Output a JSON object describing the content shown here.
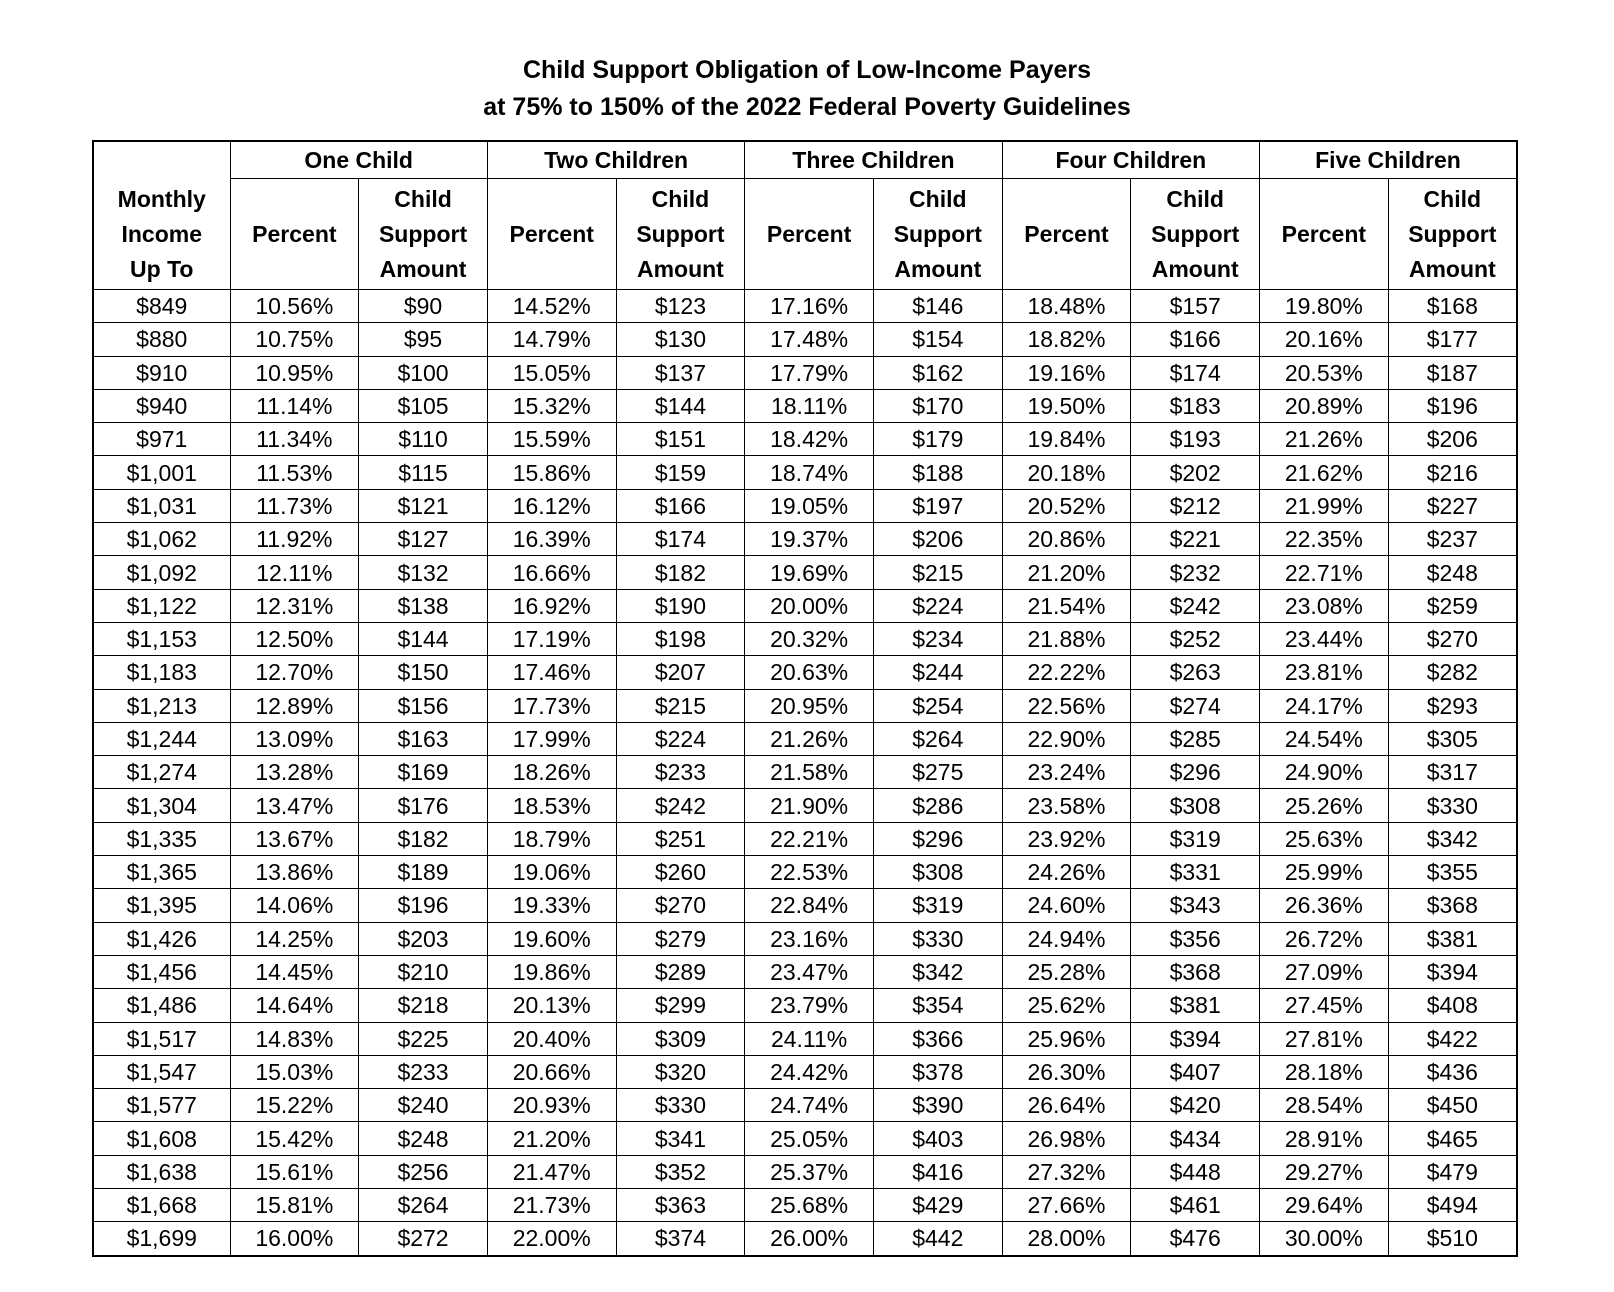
{
  "title": [
    "Child Support Obligation of Low-Income Payers",
    "at 75% to 150% of the 2022 Federal Poverty Guidelines"
  ],
  "table": {
    "income_header": [
      "Monthly",
      "Income",
      "Up To"
    ],
    "groups": [
      {
        "name": "One Child",
        "percent": "Percent",
        "amount": [
          "Child",
          "Support",
          "Amount"
        ]
      },
      {
        "name": "Two Children",
        "percent": "Percent",
        "amount": [
          "Child",
          "Support",
          "Amount"
        ]
      },
      {
        "name": "Three Children",
        "percent": "Percent",
        "amount": [
          "Child",
          "Support",
          "Amount"
        ]
      },
      {
        "name": "Four Children",
        "percent": "Percent",
        "amount": [
          "Child",
          "Support",
          "Amount"
        ]
      },
      {
        "name": "Five Children",
        "percent": "Percent",
        "amount": [
          "Child",
          "Support",
          "Amount"
        ]
      }
    ],
    "rows": [
      [
        "$849",
        "10.56%",
        "$90",
        "14.52%",
        "$123",
        "17.16%",
        "$146",
        "18.48%",
        "$157",
        "19.80%",
        "$168"
      ],
      [
        "$880",
        "10.75%",
        "$95",
        "14.79%",
        "$130",
        "17.48%",
        "$154",
        "18.82%",
        "$166",
        "20.16%",
        "$177"
      ],
      [
        "$910",
        "10.95%",
        "$100",
        "15.05%",
        "$137",
        "17.79%",
        "$162",
        "19.16%",
        "$174",
        "20.53%",
        "$187"
      ],
      [
        "$940",
        "11.14%",
        "$105",
        "15.32%",
        "$144",
        "18.11%",
        "$170",
        "19.50%",
        "$183",
        "20.89%",
        "$196"
      ],
      [
        "$971",
        "11.34%",
        "$110",
        "15.59%",
        "$151",
        "18.42%",
        "$179",
        "19.84%",
        "$193",
        "21.26%",
        "$206"
      ],
      [
        "$1,001",
        "11.53%",
        "$115",
        "15.86%",
        "$159",
        "18.74%",
        "$188",
        "20.18%",
        "$202",
        "21.62%",
        "$216"
      ],
      [
        "$1,031",
        "11.73%",
        "$121",
        "16.12%",
        "$166",
        "19.05%",
        "$197",
        "20.52%",
        "$212",
        "21.99%",
        "$227"
      ],
      [
        "$1,062",
        "11.92%",
        "$127",
        "16.39%",
        "$174",
        "19.37%",
        "$206",
        "20.86%",
        "$221",
        "22.35%",
        "$237"
      ],
      [
        "$1,092",
        "12.11%",
        "$132",
        "16.66%",
        "$182",
        "19.69%",
        "$215",
        "21.20%",
        "$232",
        "22.71%",
        "$248"
      ],
      [
        "$1,122",
        "12.31%",
        "$138",
        "16.92%",
        "$190",
        "20.00%",
        "$224",
        "21.54%",
        "$242",
        "23.08%",
        "$259"
      ],
      [
        "$1,153",
        "12.50%",
        "$144",
        "17.19%",
        "$198",
        "20.32%",
        "$234",
        "21.88%",
        "$252",
        "23.44%",
        "$270"
      ],
      [
        "$1,183",
        "12.70%",
        "$150",
        "17.46%",
        "$207",
        "20.63%",
        "$244",
        "22.22%",
        "$263",
        "23.81%",
        "$282"
      ],
      [
        "$1,213",
        "12.89%",
        "$156",
        "17.73%",
        "$215",
        "20.95%",
        "$254",
        "22.56%",
        "$274",
        "24.17%",
        "$293"
      ],
      [
        "$1,244",
        "13.09%",
        "$163",
        "17.99%",
        "$224",
        "21.26%",
        "$264",
        "22.90%",
        "$285",
        "24.54%",
        "$305"
      ],
      [
        "$1,274",
        "13.28%",
        "$169",
        "18.26%",
        "$233",
        "21.58%",
        "$275",
        "23.24%",
        "$296",
        "24.90%",
        "$317"
      ],
      [
        "$1,304",
        "13.47%",
        "$176",
        "18.53%",
        "$242",
        "21.90%",
        "$286",
        "23.58%",
        "$308",
        "25.26%",
        "$330"
      ],
      [
        "$1,335",
        "13.67%",
        "$182",
        "18.79%",
        "$251",
        "22.21%",
        "$296",
        "23.92%",
        "$319",
        "25.63%",
        "$342"
      ],
      [
        "$1,365",
        "13.86%",
        "$189",
        "19.06%",
        "$260",
        "22.53%",
        "$308",
        "24.26%",
        "$331",
        "25.99%",
        "$355"
      ],
      [
        "$1,395",
        "14.06%",
        "$196",
        "19.33%",
        "$270",
        "22.84%",
        "$319",
        "24.60%",
        "$343",
        "26.36%",
        "$368"
      ],
      [
        "$1,426",
        "14.25%",
        "$203",
        "19.60%",
        "$279",
        "23.16%",
        "$330",
        "24.94%",
        "$356",
        "26.72%",
        "$381"
      ],
      [
        "$1,456",
        "14.45%",
        "$210",
        "19.86%",
        "$289",
        "23.47%",
        "$342",
        "25.28%",
        "$368",
        "27.09%",
        "$394"
      ],
      [
        "$1,486",
        "14.64%",
        "$218",
        "20.13%",
        "$299",
        "23.79%",
        "$354",
        "25.62%",
        "$381",
        "27.45%",
        "$408"
      ],
      [
        "$1,517",
        "14.83%",
        "$225",
        "20.40%",
        "$309",
        "24.11%",
        "$366",
        "25.96%",
        "$394",
        "27.81%",
        "$422"
      ],
      [
        "$1,547",
        "15.03%",
        "$233",
        "20.66%",
        "$320",
        "24.42%",
        "$378",
        "26.30%",
        "$407",
        "28.18%",
        "$436"
      ],
      [
        "$1,577",
        "15.22%",
        "$240",
        "20.93%",
        "$330",
        "24.74%",
        "$390",
        "26.64%",
        "$420",
        "28.54%",
        "$450"
      ],
      [
        "$1,608",
        "15.42%",
        "$248",
        "21.20%",
        "$341",
        "25.05%",
        "$403",
        "26.98%",
        "$434",
        "28.91%",
        "$465"
      ],
      [
        "$1,638",
        "15.61%",
        "$256",
        "21.47%",
        "$352",
        "25.37%",
        "$416",
        "27.32%",
        "$448",
        "29.27%",
        "$479"
      ],
      [
        "$1,668",
        "15.81%",
        "$264",
        "21.73%",
        "$363",
        "25.68%",
        "$429",
        "27.66%",
        "$461",
        "29.64%",
        "$494"
      ],
      [
        "$1,699",
        "16.00%",
        "$272",
        "22.00%",
        "$374",
        "26.00%",
        "$442",
        "28.00%",
        "$476",
        "30.00%",
        "$510"
      ]
    ]
  }
}
